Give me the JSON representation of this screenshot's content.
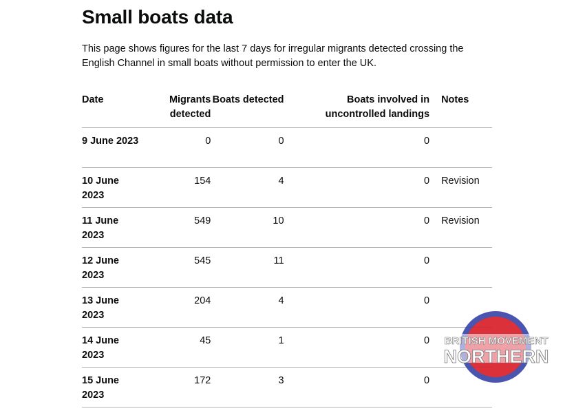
{
  "page": {
    "title": "Small boats data",
    "description": "This page shows figures for the last 7 days for irregular migrants detected crossing the English Channel in small boats without permission to enter the UK."
  },
  "table": {
    "headers": {
      "date": "Date",
      "migrants": "Migrants detected",
      "boats": "Boats detected",
      "uncontrolled": "Boats involved in uncontrolled landings",
      "notes": "Notes"
    },
    "rows": [
      {
        "date": "9 June 2023",
        "migrants": "0",
        "boats": "0",
        "uncontrolled": "0",
        "notes": ""
      },
      {
        "date": "10 June 2023",
        "migrants": "154",
        "boats": "4",
        "uncontrolled": "0",
        "notes": "Revision"
      },
      {
        "date": "11 June 2023",
        "migrants": "549",
        "boats": "10",
        "uncontrolled": "0",
        "notes": "Revision"
      },
      {
        "date": "12 June 2023",
        "migrants": "545",
        "boats": "11",
        "uncontrolled": "0",
        "notes": ""
      },
      {
        "date": "13 June 2023",
        "migrants": "204",
        "boats": "4",
        "uncontrolled": "0",
        "notes": ""
      },
      {
        "date": "14 June 2023",
        "migrants": "45",
        "boats": "1",
        "uncontrolled": "0",
        "notes": ""
      },
      {
        "date": "15 June 2023",
        "migrants": "172",
        "boats": "3",
        "uncontrolled": "0",
        "notes": ""
      }
    ]
  },
  "watermark": {
    "line1": "BRITISH MOVEMENT",
    "line2": "NORTHERN",
    "colors": {
      "blue": "#3a47a8",
      "red": "#d8202b",
      "white": "#ffffff"
    }
  }
}
